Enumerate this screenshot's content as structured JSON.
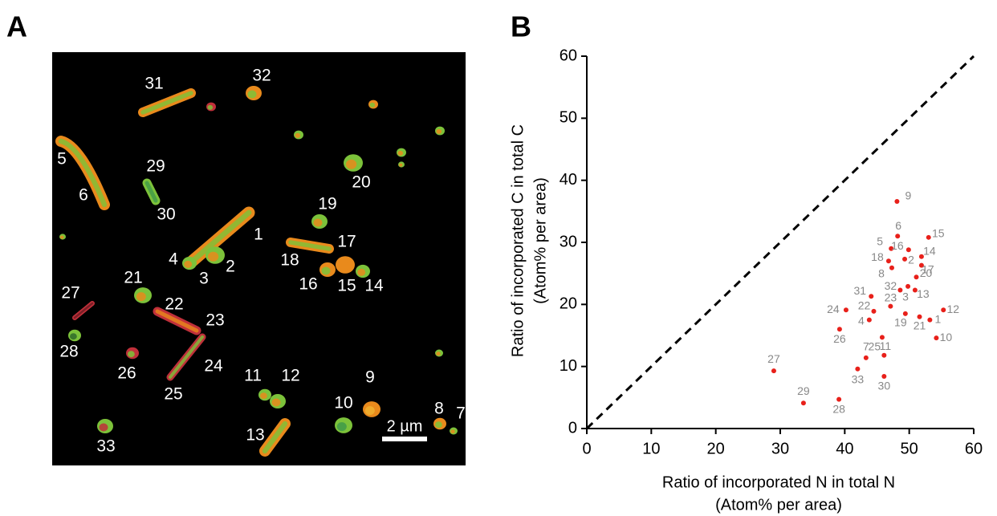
{
  "panel_a": {
    "label": "A",
    "scale_bar": "2 µm",
    "cell_labels": [
      "1",
      "2",
      "3",
      "4",
      "5",
      "6",
      "7",
      "8",
      "9",
      "10",
      "11",
      "12",
      "13",
      "14",
      "15",
      "16",
      "17",
      "18",
      "19",
      "20",
      "21",
      "22",
      "23",
      "24",
      "25",
      "26",
      "27",
      "28",
      "29",
      "30",
      "31",
      "32",
      "33"
    ]
  },
  "chart_data": {
    "type": "scatter",
    "panel_label": "B",
    "xlabel": [
      "Ratio of incorporated N in total N",
      "(Atom% per area)"
    ],
    "ylabel": [
      "Ratio of incorporated C in total C",
      "(Atom% per area)"
    ],
    "point_labels": [
      "1",
      "2",
      "3",
      "4",
      "5",
      "6",
      "7",
      "8",
      "9",
      "10",
      "11",
      "12",
      "13",
      "14",
      "15",
      "16",
      "17",
      "18",
      "19",
      "20",
      "21",
      "22",
      "23",
      "24",
      "25",
      "26",
      "27",
      "28",
      "29",
      "30",
      "31",
      "32",
      "33"
    ],
    "x": [
      53.2,
      49.3,
      49.8,
      43.8,
      47.2,
      48.2,
      43.3,
      47.3,
      48.1,
      54.2,
      45.8,
      55.3,
      50.9,
      51.9,
      53.0,
      49.9,
      51.9,
      46.8,
      49.4,
      51.1,
      51.6,
      44.5,
      47.1,
      40.2,
      46.1,
      39.2,
      29.0,
      39.1,
      33.6,
      46.1,
      44.1,
      48.6,
      42.0
    ],
    "values": [
      17.5,
      27.3,
      22.9,
      17.5,
      29.0,
      31.0,
      11.4,
      25.9,
      36.6,
      14.6,
      14.7,
      19.1,
      22.3,
      27.7,
      30.8,
      28.8,
      26.3,
      27.0,
      18.5,
      24.4,
      18.0,
      18.9,
      19.7,
      19.1,
      11.8,
      16.0,
      9.3,
      4.7,
      4.1,
      8.4,
      21.3,
      22.3,
      9.6
    ],
    "color": "#e8201a",
    "label_color": "#888888",
    "xlim": [
      0,
      60
    ],
    "ylim": [
      0,
      60
    ],
    "xticks": [
      0,
      10,
      20,
      30,
      40,
      50,
      60
    ],
    "yticks": [
      0,
      10,
      20,
      30,
      40,
      50,
      60
    ],
    "diagonal_line": true
  }
}
